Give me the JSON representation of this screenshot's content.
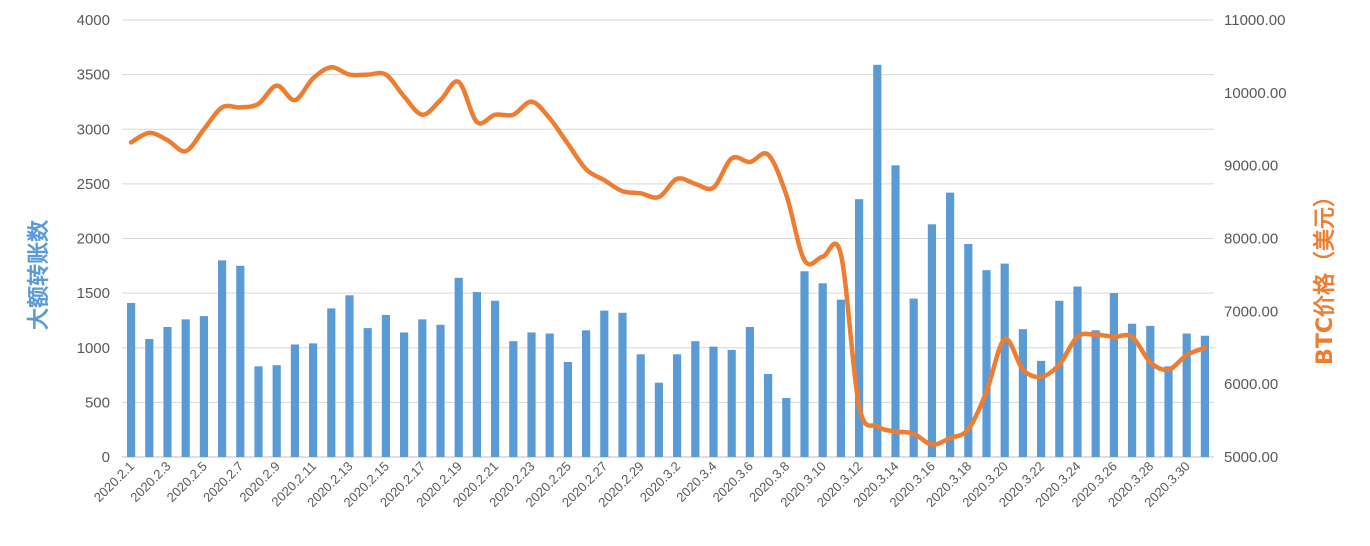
{
  "chart_data": {
    "type": "bar+line",
    "title": "",
    "grid": true,
    "legend": "none",
    "x": [
      "2020.2.1",
      "2020.2.2",
      "2020.2.3",
      "2020.2.4",
      "2020.2.5",
      "2020.2.6",
      "2020.2.7",
      "2020.2.8",
      "2020.2.9",
      "2020.2.10",
      "2020.2.11",
      "2020.2.12",
      "2020.2.13",
      "2020.2.14",
      "2020.2.15",
      "2020.2.16",
      "2020.2.17",
      "2020.2.18",
      "2020.2.19",
      "2020.2.20",
      "2020.2.21",
      "2020.2.22",
      "2020.2.23",
      "2020.2.24",
      "2020.2.25",
      "2020.2.26",
      "2020.2.27",
      "2020.2.28",
      "2020.2.29",
      "2020.3.1",
      "2020.3.2",
      "2020.3.3",
      "2020.3.4",
      "2020.3.5",
      "2020.3.6",
      "2020.3.7",
      "2020.3.8",
      "2020.3.9",
      "2020.3.10",
      "2020.3.11",
      "2020.3.12",
      "2020.3.13",
      "2020.3.14",
      "2020.3.15",
      "2020.3.16",
      "2020.3.17",
      "2020.3.18",
      "2020.3.19",
      "2020.3.20",
      "2020.3.21",
      "2020.3.22",
      "2020.3.23",
      "2020.3.24",
      "2020.3.25",
      "2020.3.26",
      "2020.3.27",
      "2020.3.28",
      "2020.3.29",
      "2020.3.30",
      "2020.3.31"
    ],
    "x_tick_labels": [
      "2020.2.1",
      "2020.2.3",
      "2020.2.5",
      "2020.2.7",
      "2020.2.9",
      "2020.2.11",
      "2020.2.13",
      "2020.2.15",
      "2020.2.17",
      "2020.2.19",
      "2020.2.21",
      "2020.2.23",
      "2020.2.25",
      "2020.2.27",
      "2020.2.29",
      "2020.3.2",
      "2020.3.4",
      "2020.3.6",
      "2020.3.8",
      "2020.3.10",
      "2020.3.12",
      "2020.3.14",
      "2020.3.16",
      "2020.3.18",
      "2020.3.20",
      "2020.3.22",
      "2020.3.24",
      "2020.3.26",
      "2020.3.28",
      "2020.3.30"
    ],
    "y_left": {
      "label": "大额转账数",
      "range": [
        0,
        4000
      ],
      "ticks": [
        "0",
        "500",
        "1000",
        "1500",
        "2000",
        "2500",
        "3000",
        "3500",
        "4000"
      ]
    },
    "y_right": {
      "label": "BTC价格（美元）",
      "range": [
        5000,
        11000
      ],
      "ticks": [
        "5000.00",
        "6000.00",
        "7000.00",
        "8000.00",
        "9000.00",
        "10000.00",
        "11000.00"
      ]
    },
    "series": [
      {
        "type": "bar",
        "axis": "left",
        "color": "#5b9bd5",
        "values": [
          1410,
          1080,
          1190,
          1260,
          1290,
          1800,
          1750,
          830,
          840,
          1030,
          1040,
          1360,
          1480,
          1180,
          1300,
          1140,
          1260,
          1210,
          1640,
          1510,
          1430,
          1060,
          1140,
          1130,
          870,
          1160,
          1340,
          1320,
          940,
          680,
          940,
          1060,
          1010,
          980,
          1190,
          760,
          540,
          1700,
          1590,
          1440,
          2360,
          3590,
          2670,
          1450,
          2130,
          2420,
          1950,
          1710,
          1770,
          1170,
          880,
          1430,
          1560,
          1160,
          1500,
          1220,
          1200,
          830,
          1130,
          1110
        ]
      },
      {
        "type": "line",
        "axis": "right",
        "color": "#ed7d31",
        "values": [
          9320,
          9450,
          9350,
          9200,
          9500,
          9800,
          9800,
          9850,
          10100,
          9900,
          10200,
          10350,
          10250,
          10250,
          10250,
          9950,
          9700,
          9900,
          10150,
          9600,
          9700,
          9700,
          9880,
          9650,
          9300,
          8950,
          8800,
          8650,
          8620,
          8570,
          8820,
          8750,
          8700,
          9100,
          9050,
          9150,
          8600,
          7700,
          7750,
          7780,
          5700,
          5420,
          5350,
          5320,
          5170,
          5260,
          5380,
          5900,
          6620,
          6200,
          6100,
          6270,
          6650,
          6680,
          6650,
          6650,
          6300,
          6200,
          6400,
          6500
        ]
      }
    ]
  }
}
